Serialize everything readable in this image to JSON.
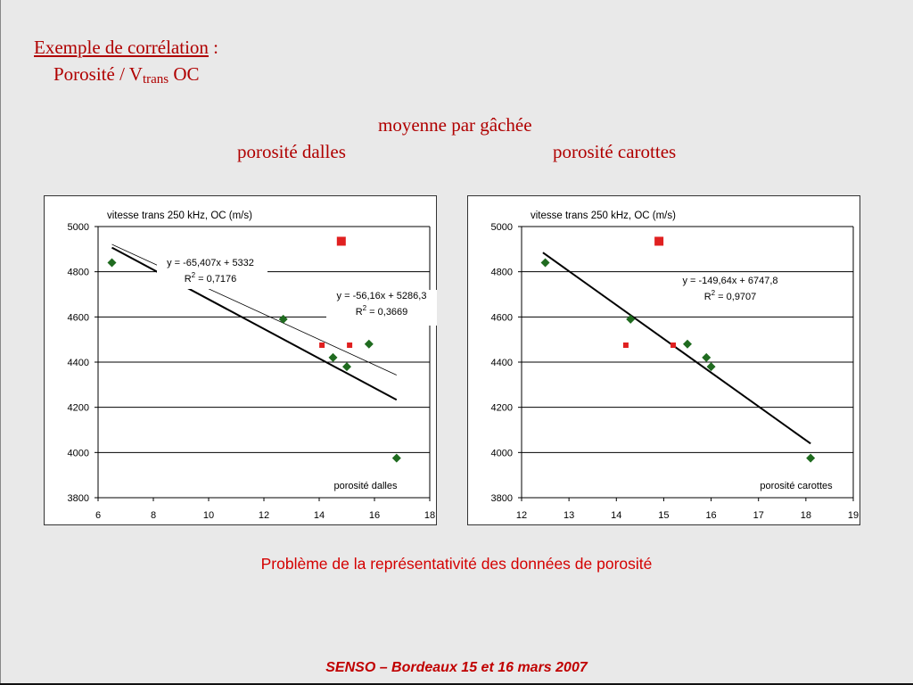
{
  "slide": {
    "title_label": "Exemple de corrélation",
    "title_colon": " :",
    "title_line2_prefix": "Porosité / V",
    "title_line2_sub": "trans",
    "title_line2_suffix": " OC",
    "subtitle_center": "moyenne par gâchée",
    "subtitle_left": "porosité dalles",
    "subtitle_right": "porosité carottes",
    "problem_text": "Problème de la représentativité des données de porosité",
    "footer_text": "SENSO – Bordeaux 15 et 16 mars 2007",
    "colors": {
      "title": "#b00000",
      "problem": "#d40000",
      "green": "#1f6b1f",
      "red": "#e02020"
    }
  },
  "chart_data": [
    {
      "type": "scatter",
      "title": "vitesse trans 250 kHz, OC (m/s)",
      "xlabel": "porosité dalles",
      "xlim": [
        6,
        18
      ],
      "ylim": [
        3800,
        5000
      ],
      "xticks": [
        6,
        8,
        10,
        12,
        14,
        16,
        18
      ],
      "yticks": [
        3800,
        4000,
        4200,
        4400,
        4600,
        4800,
        5000
      ],
      "grid": "horizontal",
      "series": [
        {
          "marker": "diamond",
          "color": "#1f6b1f",
          "points": [
            [
              6.5,
              4840
            ],
            [
              12.7,
              4590
            ],
            [
              14.5,
              4420
            ],
            [
              15.0,
              4380
            ],
            [
              15.8,
              4480
            ],
            [
              16.8,
              3975
            ]
          ]
        },
        {
          "marker": "square",
          "color": "#e02020",
          "points": [
            [
              14.1,
              4475
            ],
            [
              15.1,
              4475
            ]
          ]
        },
        {
          "marker": "square-large",
          "color": "#e02020",
          "points": [
            [
              14.8,
              4935
            ]
          ]
        }
      ],
      "trendlines": [
        {
          "slope": -65.407,
          "intercept": 5332,
          "x_range": [
            6.5,
            16.8
          ],
          "width": "thick"
        },
        {
          "slope": -56.16,
          "intercept": 5286.3,
          "x_range": [
            6.5,
            16.8
          ],
          "width": "thin"
        }
      ],
      "annotations": [
        {
          "eq": "y = -65,407x + 5332",
          "r2_label": "R",
          "r2_sup": "2",
          "r2_value": " = 0,7176"
        },
        {
          "eq": "y = -56,16x + 5286,3",
          "r2_label": "R",
          "r2_sup": "2",
          "r2_value": " = 0,3669"
        }
      ]
    },
    {
      "type": "scatter",
      "title": "vitesse trans 250 kHz, OC (m/s)",
      "xlabel": "porosité carottes",
      "xlim": [
        12,
        19
      ],
      "ylim": [
        3800,
        5000
      ],
      "xticks": [
        12,
        13,
        14,
        15,
        16,
        17,
        18,
        19
      ],
      "yticks": [
        3800,
        4000,
        4200,
        4400,
        4600,
        4800,
        5000
      ],
      "grid": "horizontal",
      "series": [
        {
          "marker": "diamond",
          "color": "#1f6b1f",
          "points": [
            [
              12.5,
              4840
            ],
            [
              14.3,
              4590
            ],
            [
              15.5,
              4480
            ],
            [
              15.9,
              4420
            ],
            [
              16.0,
              4380
            ],
            [
              18.1,
              3975
            ]
          ]
        },
        {
          "marker": "square",
          "color": "#e02020",
          "points": [
            [
              14.2,
              4475
            ],
            [
              15.2,
              4475
            ]
          ]
        },
        {
          "marker": "square-large",
          "color": "#e02020",
          "points": [
            [
              14.9,
              4935
            ]
          ]
        }
      ],
      "trendlines": [
        {
          "slope": -149.64,
          "intercept": 6747.8,
          "x_range": [
            12.45,
            18.1
          ],
          "width": "thick"
        }
      ],
      "annotations": [
        {
          "eq": "y = -149,64x + 6747,8",
          "r2_label": "R",
          "r2_sup": "2",
          "r2_value": " = 0,9707"
        }
      ]
    }
  ]
}
